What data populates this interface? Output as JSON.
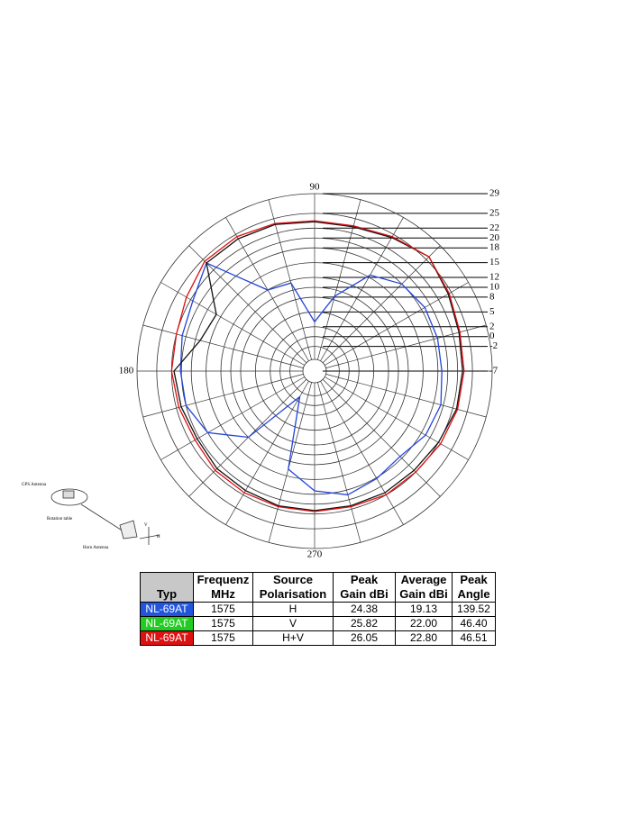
{
  "chart_data": {
    "type": "polar",
    "theta": [
      0,
      15,
      30,
      45,
      60,
      75,
      90,
      105,
      120,
      135,
      150,
      165,
      180,
      195,
      210,
      225,
      240,
      255,
      270,
      285,
      300,
      315,
      330,
      345
    ],
    "series": [
      {
        "color": "#2244dd",
        "values": [
          18.8,
          18.8,
          18.8,
          18,
          15.5,
          8.7,
          3,
          11.5,
          12,
          24,
          21.5,
          20.8,
          20.2,
          20,
          18,
          12,
          -1,
          13.6,
          17.3,
          19,
          18.2,
          17.5,
          19,
          19.5
        ]
      },
      {
        "color": "#111111",
        "values": [
          23,
          23.3,
          24.3,
          25.8,
          24.3,
          23.3,
          23.3,
          23.8,
          24,
          24,
          16,
          17,
          21.5,
          21,
          20.5,
          21,
          21,
          21.3,
          21.3,
          21.3,
          21.5,
          21.5,
          22,
          22.8
        ]
      },
      {
        "color": "#dd1111",
        "values": [
          23.3,
          23.5,
          24.5,
          25.8,
          24.5,
          23.5,
          23.5,
          24,
          24.5,
          24.5,
          23,
          22,
          22,
          21.5,
          21,
          21.5,
          21.5,
          21.5,
          21.5,
          21.5,
          22,
          22,
          22.5,
          23
        ]
      }
    ],
    "rlim": [
      -7,
      29
    ],
    "rticks": [
      -7,
      -2,
      0,
      2,
      5,
      8,
      10,
      12,
      15,
      18,
      20,
      22,
      25,
      29
    ],
    "theta_labels": [
      90,
      180,
      270
    ]
  },
  "diagram": {
    "labels": [
      "GPS Antenna",
      "Rotation table",
      "Horn Antenna",
      "V",
      "H"
    ]
  },
  "table": {
    "header": [
      [
        "Typ"
      ],
      [
        "Frequenz",
        "MHz"
      ],
      [
        "Source",
        "Polarisation"
      ],
      [
        "Peak",
        "Gain dBi"
      ],
      [
        "Average",
        "Gain dBi"
      ],
      [
        "Peak",
        "Angle"
      ]
    ],
    "rows": [
      [
        "NL-69AT",
        "1575",
        "H",
        "24.38",
        "19.13",
        "139.52"
      ],
      [
        "NL-69AT",
        "1575",
        "V",
        "25.82",
        "22.00",
        "46.40"
      ],
      [
        "NL-69AT",
        "1575",
        "H+V",
        "26.05",
        "22.80",
        "46.51"
      ]
    ],
    "row_colors": [
      "#2255dd",
      "#22cc22",
      "#dd1111"
    ]
  }
}
